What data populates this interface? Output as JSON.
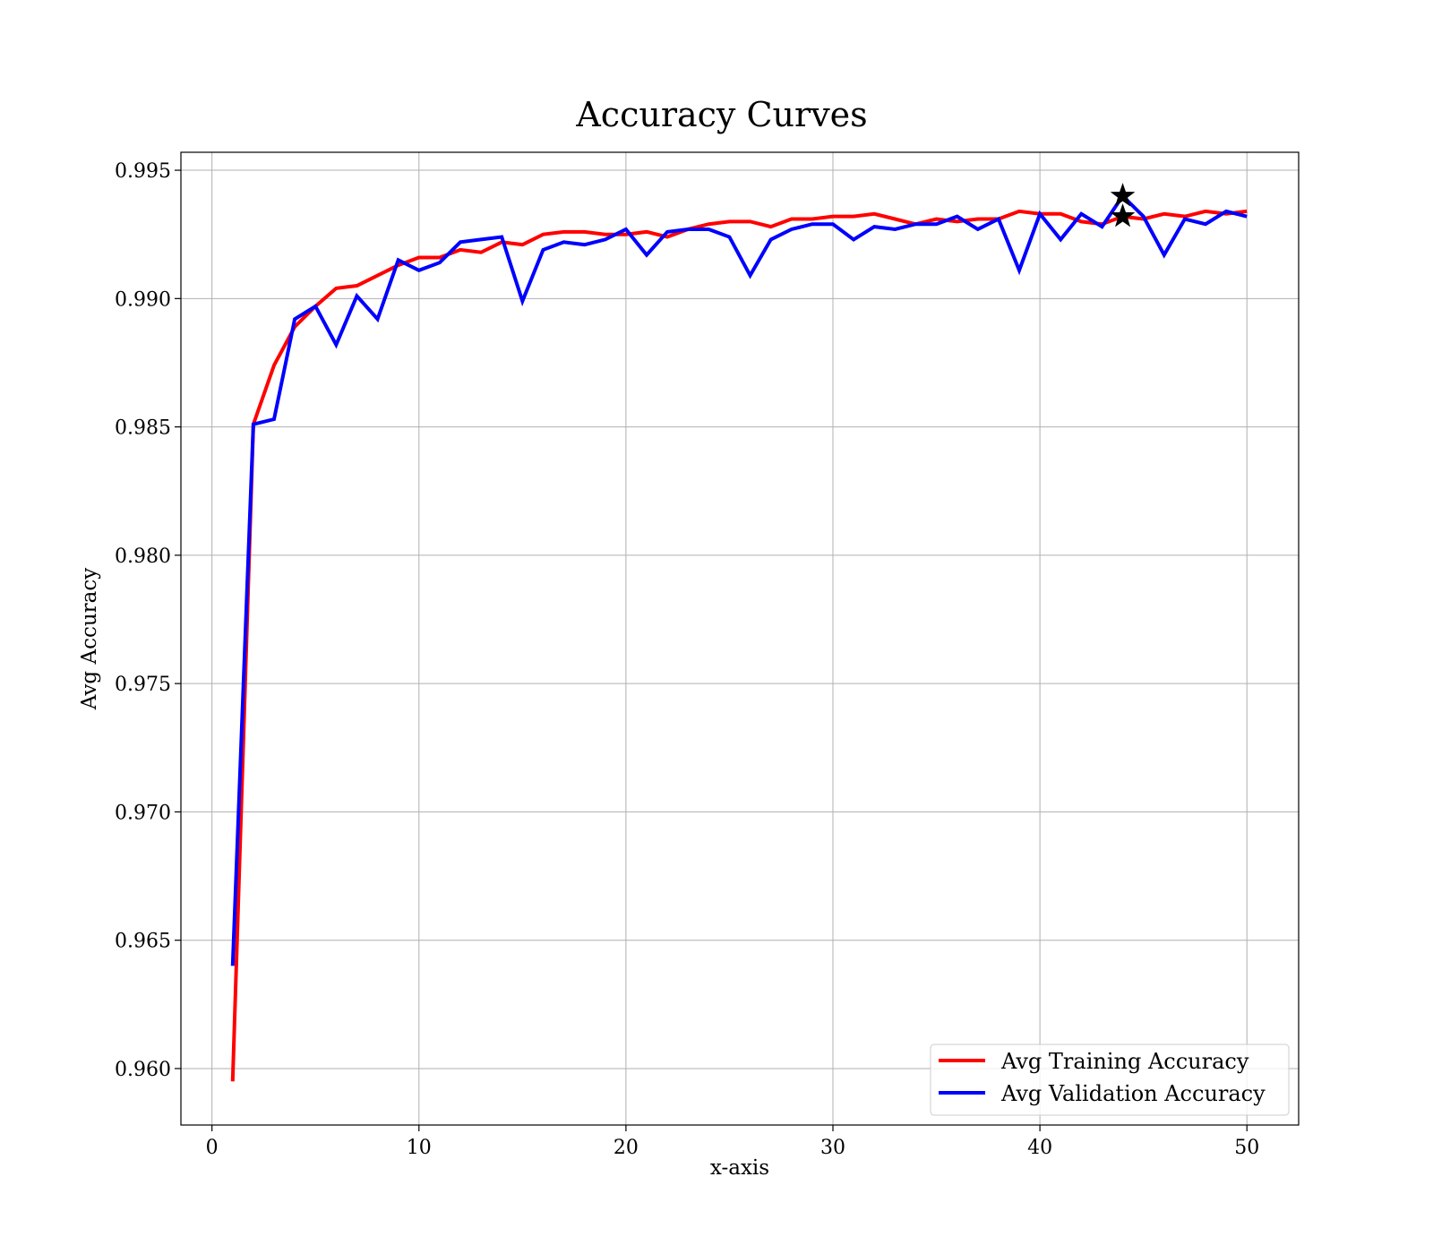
{
  "chart_data": {
    "type": "line",
    "title": "Accuracy Curves",
    "xlabel": "x-axis",
    "ylabel": "Avg Accuracy",
    "xlim": [
      -1.5,
      52.5
    ],
    "ylim": [
      0.9578,
      0.9957
    ],
    "xticks": [
      0,
      10,
      20,
      30,
      40,
      50
    ],
    "yticks": [
      0.96,
      0.965,
      0.97,
      0.975,
      0.98,
      0.985,
      0.99,
      0.995
    ],
    "ytick_labels": [
      "0.960",
      "0.965",
      "0.970",
      "0.975",
      "0.980",
      "0.985",
      "0.990",
      "0.995"
    ],
    "grid": true,
    "legend_position": "lower-right",
    "x": [
      1,
      2,
      3,
      4,
      5,
      6,
      7,
      8,
      9,
      10,
      11,
      12,
      13,
      14,
      15,
      16,
      17,
      18,
      19,
      20,
      21,
      22,
      23,
      24,
      25,
      26,
      27,
      28,
      29,
      30,
      31,
      32,
      33,
      34,
      35,
      36,
      37,
      38,
      39,
      40,
      41,
      42,
      43,
      44,
      45,
      46,
      47,
      48,
      49,
      50
    ],
    "series": [
      {
        "name": "Avg Training Accuracy",
        "color": "#ff0000",
        "values": [
          0.9595,
          0.9851,
          0.9874,
          0.9889,
          0.9897,
          0.9904,
          0.9905,
          0.9909,
          0.9913,
          0.9916,
          0.9916,
          0.9919,
          0.9918,
          0.9922,
          0.9921,
          0.9925,
          0.9926,
          0.9926,
          0.9925,
          0.9925,
          0.9926,
          0.9924,
          0.9927,
          0.9929,
          0.993,
          0.993,
          0.9928,
          0.9931,
          0.9931,
          0.9932,
          0.9932,
          0.9933,
          0.9931,
          0.9929,
          0.9931,
          0.993,
          0.9931,
          0.9931,
          0.9934,
          0.9933,
          0.9933,
          0.993,
          0.9929,
          0.9932,
          0.9931,
          0.9933,
          0.9932,
          0.9934,
          0.9933,
          0.9934
        ]
      },
      {
        "name": "Avg Validation Accuracy",
        "color": "#0000ff",
        "values": [
          0.964,
          0.9851,
          0.9853,
          0.9892,
          0.9897,
          0.9882,
          0.9901,
          0.9892,
          0.9915,
          0.9911,
          0.9914,
          0.9922,
          0.9923,
          0.9924,
          0.9899,
          0.9919,
          0.9922,
          0.9921,
          0.9923,
          0.9927,
          0.9917,
          0.9926,
          0.9927,
          0.9927,
          0.9924,
          0.9909,
          0.9923,
          0.9927,
          0.9929,
          0.9929,
          0.9923,
          0.9928,
          0.9927,
          0.9929,
          0.9929,
          0.9932,
          0.9927,
          0.9931,
          0.9911,
          0.9933,
          0.9923,
          0.9933,
          0.9928,
          0.994,
          0.9932,
          0.9917,
          0.9931,
          0.9929,
          0.9934,
          0.9932
        ]
      }
    ],
    "markers": [
      {
        "x": 44,
        "y": 0.994,
        "symbol": "star",
        "color": "#000000"
      },
      {
        "x": 44,
        "y": 0.9932,
        "symbol": "star",
        "color": "#000000"
      }
    ]
  }
}
